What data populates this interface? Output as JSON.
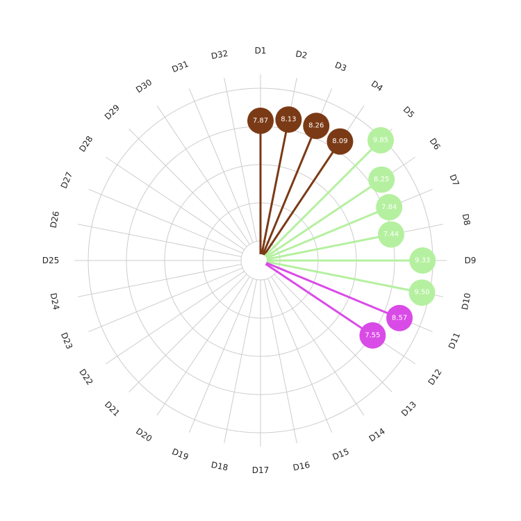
{
  "chart_data": {
    "type": "circular-lollipop",
    "categories": [
      "D1",
      "D2",
      "D3",
      "D4",
      "D5",
      "D6",
      "D7",
      "D8",
      "D9",
      "D10",
      "D11",
      "D12",
      "D13",
      "D14",
      "D15",
      "D16",
      "D17",
      "D18",
      "D19",
      "D20",
      "D21",
      "D22",
      "D23",
      "D24",
      "D25",
      "D26",
      "D27",
      "D28",
      "D29",
      "D30",
      "D31",
      "D32"
    ],
    "rlim": [
      0,
      10
    ],
    "grid": true,
    "legend": "none",
    "points": [
      {
        "category": "D1",
        "value": 7.87,
        "label": "7.87",
        "color": "#7b3a16"
      },
      {
        "category": "D2",
        "value": 8.13,
        "label": "8.13",
        "color": "#7b3a16"
      },
      {
        "category": "D3",
        "value": 8.26,
        "label": "8.26",
        "color": "#7b3a16"
      },
      {
        "category": "D4",
        "value": 8.09,
        "label": "8.09",
        "color": "#7b3a16"
      },
      {
        "category": "D5",
        "value": 9.85,
        "label": "9.85",
        "color": "#b5f0a0"
      },
      {
        "category": "D6",
        "value": 8.25,
        "label": "8.25",
        "color": "#b5f0a0"
      },
      {
        "category": "D7",
        "value": 7.84,
        "label": "7.84",
        "color": "#b5f0a0"
      },
      {
        "category": "D8",
        "value": 7.44,
        "label": "7.44",
        "color": "#b5f0a0"
      },
      {
        "category": "D9",
        "value": 9.33,
        "label": "9.33",
        "color": "#b5f0a0"
      },
      {
        "category": "D10",
        "value": 9.5,
        "label": "9.50",
        "color": "#b5f0a0"
      },
      {
        "category": "D11",
        "value": 8.57,
        "label": "8.57",
        "color": "#d94be6"
      },
      {
        "category": "D12",
        "value": 7.55,
        "label": "7.55",
        "color": "#d94be6"
      }
    ]
  }
}
